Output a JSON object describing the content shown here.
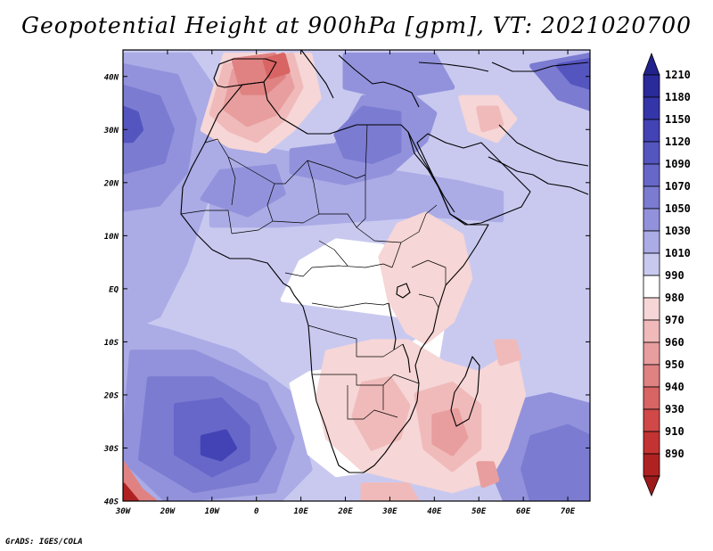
{
  "title": "Geopotential Height at 900hPa [gpm], VT: 2021020700",
  "credit": "GrADS: IGES/COLA",
  "map": {
    "lon_range": [
      -30,
      75
    ],
    "lat_range": [
      -40,
      45
    ],
    "lon_ticks": [
      {
        "value": -30,
        "label": "30W"
      },
      {
        "value": -20,
        "label": "20W"
      },
      {
        "value": -10,
        "label": "10W"
      },
      {
        "value": 0,
        "label": "0"
      },
      {
        "value": 10,
        "label": "10E"
      },
      {
        "value": 20,
        "label": "20E"
      },
      {
        "value": 30,
        "label": "30E"
      },
      {
        "value": 40,
        "label": "40E"
      },
      {
        "value": 50,
        "label": "50E"
      },
      {
        "value": 60,
        "label": "60E"
      },
      {
        "value": 70,
        "label": "70E"
      }
    ],
    "lat_ticks": [
      {
        "value": 40,
        "label": "40N"
      },
      {
        "value": 30,
        "label": "30N"
      },
      {
        "value": 20,
        "label": "20N"
      },
      {
        "value": 10,
        "label": "10N"
      },
      {
        "value": 0,
        "label": "EQ"
      },
      {
        "value": -10,
        "label": "10S"
      },
      {
        "value": -20,
        "label": "20S"
      },
      {
        "value": -30,
        "label": "30S"
      },
      {
        "value": -40,
        "label": "40S"
      }
    ]
  },
  "colorbar": {
    "levels": [
      {
        "label": "1210",
        "color": "#2a2a9a"
      },
      {
        "label": "1180",
        "color": "#3535aa"
      },
      {
        "label": "1150",
        "color": "#4343b6"
      },
      {
        "label": "1120",
        "color": "#5555c0"
      },
      {
        "label": "1090",
        "color": "#6767ca"
      },
      {
        "label": "1070",
        "color": "#7b7bd2"
      },
      {
        "label": "1050",
        "color": "#9292dc"
      },
      {
        "label": "1030",
        "color": "#ababe6"
      },
      {
        "label": "1010",
        "color": "#c9c9f0"
      },
      {
        "label": "990",
        "color": "#ffffff"
      },
      {
        "label": "980",
        "color": "#f6d6d6"
      },
      {
        "label": "970",
        "color": "#f0baba"
      },
      {
        "label": "960",
        "color": "#e89e9e"
      },
      {
        "label": "950",
        "color": "#e08282"
      },
      {
        "label": "940",
        "color": "#d86464"
      },
      {
        "label": "930",
        "color": "#d04848"
      },
      {
        "label": "910",
        "color": "#c43333"
      },
      {
        "label": "890",
        "color": "#b02222"
      }
    ],
    "top_color": "#22228c",
    "bottom_color": "#9c1a1a"
  },
  "field": {
    "background_color": "#c9c9f0",
    "regions": [
      {
        "name": "mid-atlantic-ridge",
        "color": "#ababe6",
        "points": [
          [
            -30,
            44
          ],
          [
            -15,
            44
          ],
          [
            -10,
            38
          ],
          [
            -10,
            20
          ],
          [
            -16,
            5
          ],
          [
            -22,
            -5
          ],
          [
            -30,
            -8
          ]
        ]
      },
      {
        "name": "north-atlantic-high",
        "color": "#9292dc",
        "points": [
          [
            -30,
            42
          ],
          [
            -18,
            40
          ],
          [
            -14,
            32
          ],
          [
            -16,
            22
          ],
          [
            -22,
            16
          ],
          [
            -30,
            15
          ]
        ]
      },
      {
        "name": "north-atlantic-core",
        "color": "#7b7bd2",
        "points": [
          [
            -30,
            38
          ],
          [
            -22,
            36
          ],
          [
            -19,
            30
          ],
          [
            -21,
            24
          ],
          [
            -30,
            22
          ]
        ]
      },
      {
        "name": "north-atlantic-center",
        "color": "#5555c0",
        "points": [
          [
            -30,
            34
          ],
          [
            -27,
            33
          ],
          [
            -26,
            30
          ],
          [
            -28,
            28
          ],
          [
            -30,
            28
          ]
        ]
      },
      {
        "name": "south-atlantic-ridge",
        "color": "#ababe6",
        "points": [
          [
            -30,
            -6
          ],
          [
            -20,
            -8
          ],
          [
            -5,
            -12
          ],
          [
            8,
            -20
          ],
          [
            12,
            -34
          ],
          [
            5,
            -40
          ],
          [
            -30,
            -40
          ]
        ]
      },
      {
        "name": "south-atlantic-high",
        "color": "#9292dc",
        "points": [
          [
            -28,
            -12
          ],
          [
            -14,
            -12
          ],
          [
            2,
            -18
          ],
          [
            8,
            -28
          ],
          [
            4,
            -38
          ],
          [
            -20,
            -40
          ],
          [
            -30,
            -32
          ]
        ]
      },
      {
        "name": "south-atlantic-core",
        "color": "#7b7bd2",
        "points": [
          [
            -24,
            -17
          ],
          [
            -10,
            -17
          ],
          [
            0,
            -22
          ],
          [
            4,
            -30
          ],
          [
            0,
            -36
          ],
          [
            -14,
            -38
          ],
          [
            -26,
            -32
          ]
        ]
      },
      {
        "name": "south-atlantic-inner",
        "color": "#6767ca",
        "points": [
          [
            -18,
            -22
          ],
          [
            -8,
            -21
          ],
          [
            -2,
            -26
          ],
          [
            -2,
            -32
          ],
          [
            -10,
            -35
          ],
          [
            -18,
            -31
          ]
        ]
      },
      {
        "name": "south-atlantic-center",
        "color": "#4343b6",
        "points": [
          [
            -12,
            -28
          ],
          [
            -7,
            -27
          ],
          [
            -5,
            -30
          ],
          [
            -8,
            -32
          ],
          [
            -12,
            -31
          ]
        ]
      },
      {
        "name": "southwest-low",
        "color": "#e08282",
        "points": [
          [
            -30,
            -33
          ],
          [
            -26,
            -38
          ],
          [
            -23,
            -40
          ],
          [
            -30,
            -40
          ]
        ]
      },
      {
        "name": "southwest-low-core",
        "color": "#b02222",
        "points": [
          [
            -30,
            -37
          ],
          [
            -27,
            -40
          ],
          [
            -30,
            -40
          ]
        ]
      },
      {
        "name": "indian-ocean-ridge",
        "color": "#9292dc",
        "points": [
          [
            55,
            -22
          ],
          [
            66,
            -20
          ],
          [
            75,
            -22
          ],
          [
            75,
            -40
          ],
          [
            56,
            -40
          ],
          [
            52,
            -32
          ]
        ]
      },
      {
        "name": "indian-ocean-core",
        "color": "#7b7bd2",
        "points": [
          [
            62,
            -28
          ],
          [
            70,
            -26
          ],
          [
            75,
            -28
          ],
          [
            75,
            -40
          ],
          [
            62,
            -40
          ],
          [
            60,
            -34
          ]
        ]
      },
      {
        "name": "saharan-rise",
        "color": "#ababe6",
        "points": [
          [
            -10,
            28
          ],
          [
            10,
            25
          ],
          [
            30,
            22
          ],
          [
            45,
            20
          ],
          [
            55,
            18
          ],
          [
            55,
            13
          ],
          [
            38,
            14
          ],
          [
            22,
            13
          ],
          [
            5,
            12
          ],
          [
            -10,
            12
          ]
        ]
      },
      {
        "name": "egypt-ridge",
        "color": "#9292dc",
        "points": [
          [
            8,
            26
          ],
          [
            18,
            27
          ],
          [
            24,
            36
          ],
          [
            34,
            37
          ],
          [
            40,
            33
          ],
          [
            38,
            28
          ],
          [
            30,
            22
          ],
          [
            20,
            20
          ],
          [
            8,
            22
          ]
        ]
      },
      {
        "name": "egypt-core",
        "color": "#7b7bd2",
        "points": [
          [
            18,
            29
          ],
          [
            24,
            34
          ],
          [
            32,
            33
          ],
          [
            32,
            26
          ],
          [
            26,
            24
          ],
          [
            20,
            25
          ]
        ]
      },
      {
        "name": "west-africa-ridge",
        "color": "#9292dc",
        "points": [
          [
            -8,
            22
          ],
          [
            4,
            23
          ],
          [
            6,
            18
          ],
          [
            -2,
            14
          ],
          [
            -12,
            17
          ]
        ]
      },
      {
        "name": "persia-ridge",
        "color": "#7b7bd2",
        "points": [
          [
            62,
            42
          ],
          [
            75,
            44
          ],
          [
            75,
            34
          ],
          [
            68,
            36
          ]
        ]
      },
      {
        "name": "persia-core",
        "color": "#5555c0",
        "points": [
          [
            68,
            42
          ],
          [
            75,
            43
          ],
          [
            75,
            38
          ],
          [
            71,
            39
          ]
        ]
      },
      {
        "name": "black-sea-ridge",
        "color": "#9292dc",
        "points": [
          [
            20,
            44
          ],
          [
            40,
            44
          ],
          [
            44,
            38
          ],
          [
            30,
            36
          ],
          [
            20,
            38
          ]
        ]
      },
      {
        "name": "central-africa-neutral",
        "color": "#ffffff",
        "points": [
          [
            6,
            -2
          ],
          [
            10,
            5
          ],
          [
            18,
            9
          ],
          [
            28,
            8
          ],
          [
            35,
            6
          ],
          [
            42,
            5
          ],
          [
            45,
            -3
          ],
          [
            40,
            -8
          ],
          [
            32,
            -12
          ],
          [
            22,
            -15
          ],
          [
            12,
            -16
          ],
          [
            8,
            -18
          ],
          [
            12,
            -31
          ],
          [
            18,
            -35
          ],
          [
            26,
            -34
          ],
          [
            34,
            -27
          ],
          [
            40,
            -16
          ],
          [
            42,
            -6
          ]
        ]
      },
      {
        "name": "east-africa-warm",
        "color": "#f6d6d6",
        "points": [
          [
            32,
            12
          ],
          [
            38,
            14
          ],
          [
            46,
            10
          ],
          [
            48,
            2
          ],
          [
            44,
            -6
          ],
          [
            38,
            -10
          ],
          [
            34,
            -8
          ],
          [
            30,
            -2
          ],
          [
            28,
            6
          ]
        ]
      },
      {
        "name": "southern-africa-warm",
        "color": "#f6d6d6",
        "points": [
          [
            16,
            -12
          ],
          [
            26,
            -10
          ],
          [
            34,
            -10
          ],
          [
            42,
            -14
          ],
          [
            50,
            -16
          ],
          [
            58,
            -12
          ],
          [
            60,
            -20
          ],
          [
            56,
            -30
          ],
          [
            52,
            -36
          ],
          [
            44,
            -38
          ],
          [
            34,
            -36
          ],
          [
            24,
            -34
          ],
          [
            16,
            -28
          ],
          [
            14,
            -20
          ]
        ]
      },
      {
        "name": "southern-africa-low",
        "color": "#f0baba",
        "points": [
          [
            24,
            -18
          ],
          [
            30,
            -17
          ],
          [
            34,
            -22
          ],
          [
            32,
            -28
          ],
          [
            26,
            -30
          ],
          [
            22,
            -24
          ]
        ]
      },
      {
        "name": "mozambique-low",
        "color": "#f0baba",
        "points": [
          [
            36,
            -20
          ],
          [
            44,
            -18
          ],
          [
            50,
            -22
          ],
          [
            50,
            -30
          ],
          [
            44,
            -34
          ],
          [
            38,
            -30
          ]
        ]
      },
      {
        "name": "mozambique-core",
        "color": "#e89e9e",
        "points": [
          [
            40,
            -24
          ],
          [
            45,
            -23
          ],
          [
            47,
            -28
          ],
          [
            44,
            -31
          ],
          [
            40,
            -29
          ]
        ]
      },
      {
        "name": "indian-ocean-warm",
        "color": "#f0baba",
        "points": [
          [
            54,
            -10
          ],
          [
            58,
            -10
          ],
          [
            59,
            -13
          ],
          [
            55,
            -14
          ]
        ]
      },
      {
        "name": "south-coast-low",
        "color": "#e89e9e",
        "points": [
          [
            50,
            -33
          ],
          [
            53,
            -33
          ],
          [
            54,
            -36
          ],
          [
            51,
            -37
          ]
        ]
      },
      {
        "name": "south-tip-low",
        "color": "#f0baba",
        "points": [
          [
            24,
            -37
          ],
          [
            34,
            -37
          ],
          [
            36,
            -40
          ],
          [
            24,
            -40
          ]
        ]
      },
      {
        "name": "maghreb-low",
        "color": "#f6d6d6",
        "points": [
          [
            -7,
            44
          ],
          [
            12,
            44
          ],
          [
            14,
            36
          ],
          [
            8,
            30
          ],
          [
            2,
            26
          ],
          [
            -6,
            27
          ],
          [
            -12,
            30
          ]
        ]
      },
      {
        "name": "maghreb-low-mid",
        "color": "#f0baba",
        "points": [
          [
            -7,
            42
          ],
          [
            8,
            44
          ],
          [
            10,
            38
          ],
          [
            6,
            32
          ],
          [
            0,
            28
          ],
          [
            -6,
            30
          ],
          [
            -10,
            33
          ]
        ]
      },
      {
        "name": "maghreb-low-inner",
        "color": "#e89e9e",
        "points": [
          [
            -5,
            41
          ],
          [
            6,
            43
          ],
          [
            8,
            38
          ],
          [
            4,
            33
          ],
          [
            -2,
            31
          ],
          [
            -7,
            34
          ]
        ]
      },
      {
        "name": "iberia-low",
        "color": "#e08282",
        "points": [
          [
            -5,
            43
          ],
          [
            4,
            44
          ],
          [
            6,
            40
          ],
          [
            2,
            37
          ],
          [
            -3,
            37
          ]
        ]
      },
      {
        "name": "iberia-low-core",
        "color": "#d86464",
        "points": [
          [
            2,
            43
          ],
          [
            6,
            44
          ],
          [
            7,
            41
          ],
          [
            3,
            40
          ]
        ]
      },
      {
        "name": "arabia-warm",
        "color": "#f6d6d6",
        "points": [
          [
            46,
            36
          ],
          [
            54,
            36
          ],
          [
            58,
            32
          ],
          [
            54,
            28
          ],
          [
            48,
            30
          ]
        ]
      },
      {
        "name": "arabia-warm-core",
        "color": "#f0baba",
        "points": [
          [
            50,
            34
          ],
          [
            54,
            34
          ],
          [
            55,
            31
          ],
          [
            51,
            30
          ]
        ]
      }
    ],
    "coastline_color": "#000000"
  }
}
